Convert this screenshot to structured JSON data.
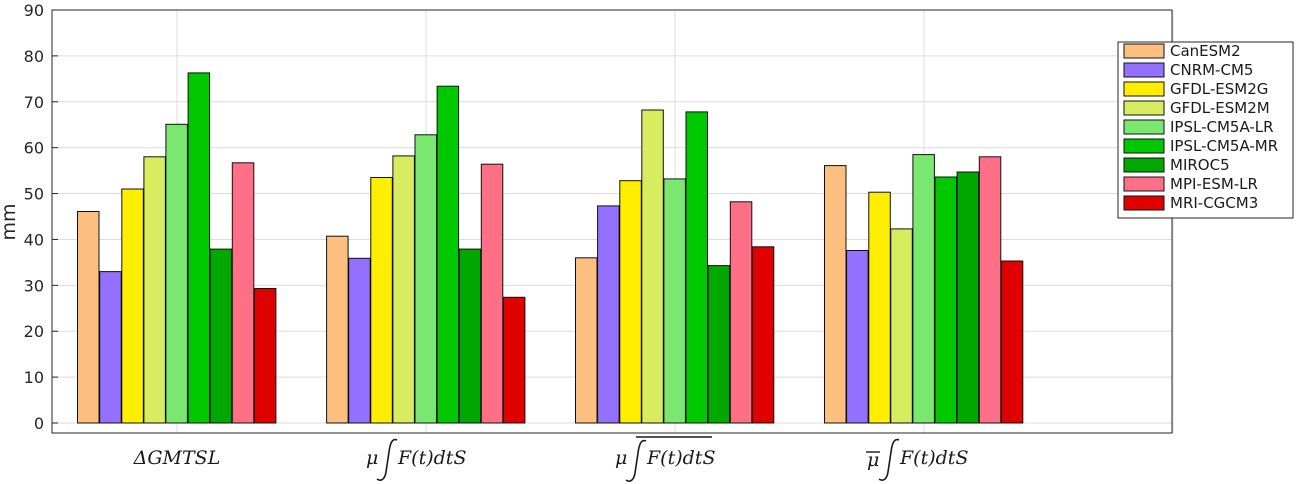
{
  "chart_data": {
    "type": "bar",
    "categories": [
      "ΔGMTSL",
      "μ ∫ F(t)dtS",
      "μ ∫ F(t)dtS (overlined)",
      "μ̄ ∫ F(t)dtS"
    ],
    "ylabel": "mm",
    "xlabel": "",
    "ylim": [
      0,
      90
    ],
    "yticks": [
      0,
      10,
      20,
      30,
      40,
      50,
      60,
      70,
      80,
      90
    ],
    "grid": true,
    "legend_position": "top-right",
    "series": [
      {
        "name": "CanESM2",
        "color": "#FDBF7F",
        "values": [
          46.1,
          40.7,
          36.0,
          56.1
        ]
      },
      {
        "name": "CNRM-CM5",
        "color": "#9370FF",
        "values": [
          33.0,
          35.9,
          47.3,
          37.6
        ]
      },
      {
        "name": "GFDL-ESM2G",
        "color": "#FFEE00",
        "values": [
          51.0,
          53.5,
          52.8,
          50.3
        ]
      },
      {
        "name": "GFDL-ESM2M",
        "color": "#D8EC60",
        "values": [
          58.0,
          58.2,
          68.2,
          42.3
        ]
      },
      {
        "name": "IPSL-CM5A-LR",
        "color": "#7AE870",
        "values": [
          65.1,
          62.8,
          53.2,
          58.5
        ]
      },
      {
        "name": "IPSL-CM5A-MR",
        "color": "#00C800",
        "values": [
          76.3,
          73.4,
          67.8,
          53.6
        ]
      },
      {
        "name": "MIROC5",
        "color": "#00A800",
        "values": [
          37.9,
          37.9,
          34.3,
          54.7
        ]
      },
      {
        "name": "MPI-ESM-LR",
        "color": "#FF6F85",
        "values": [
          56.7,
          56.4,
          48.2,
          58.0
        ]
      },
      {
        "name": "MRI-CGCM3",
        "color": "#DF0000",
        "values": [
          29.3,
          27.4,
          38.4,
          35.3
        ]
      }
    ]
  }
}
